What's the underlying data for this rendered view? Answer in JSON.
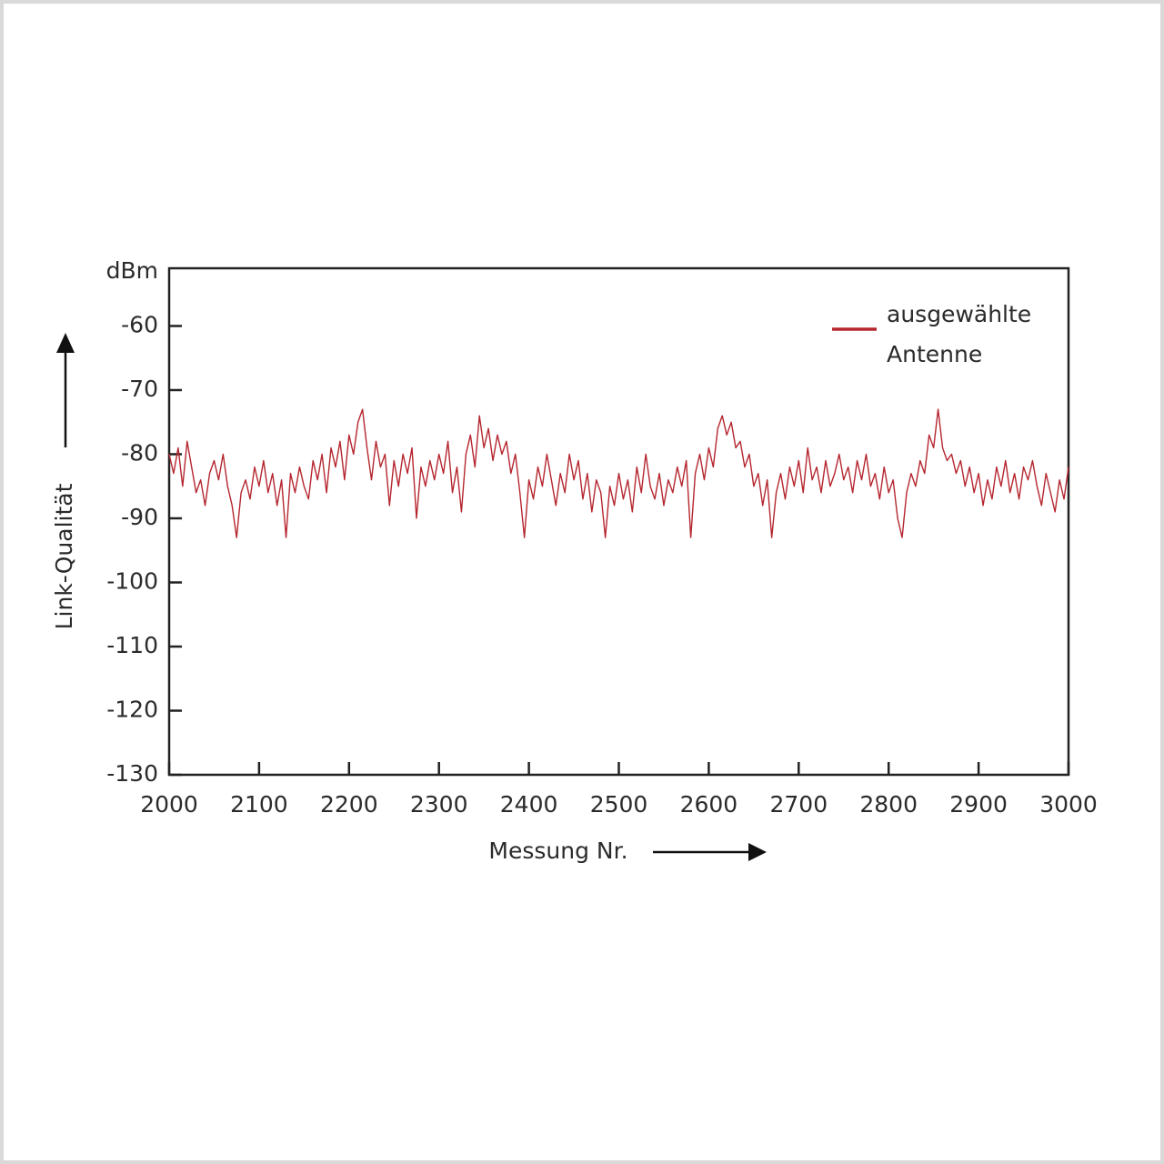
{
  "chart_data": {
    "type": "line",
    "x_label": "Messung Nr.",
    "y_label": "Link-Qualität",
    "y_unit": "dBm",
    "xlim": [
      2000,
      3000
    ],
    "ylim": [
      -130,
      -51
    ],
    "xticks": [
      2000,
      2100,
      2200,
      2300,
      2400,
      2500,
      2600,
      2700,
      2800,
      2900,
      3000
    ],
    "yticks": [
      -60,
      -70,
      -80,
      -90,
      -100,
      -110,
      -120,
      -130
    ],
    "x": [
      2000,
      2005,
      2010,
      2015,
      2020,
      2025,
      2030,
      2035,
      2040,
      2045,
      2050,
      2055,
      2060,
      2065,
      2070,
      2075,
      2080,
      2085,
      2090,
      2095,
      2100,
      2105,
      2110,
      2115,
      2120,
      2125,
      2130,
      2135,
      2140,
      2145,
      2150,
      2155,
      2160,
      2165,
      2170,
      2175,
      2180,
      2185,
      2190,
      2195,
      2200,
      2205,
      2210,
      2215,
      2220,
      2225,
      2230,
      2235,
      2240,
      2245,
      2250,
      2255,
      2260,
      2265,
      2270,
      2275,
      2280,
      2285,
      2290,
      2295,
      2300,
      2305,
      2310,
      2315,
      2320,
      2325,
      2330,
      2335,
      2340,
      2345,
      2350,
      2355,
      2360,
      2365,
      2370,
      2375,
      2380,
      2385,
      2390,
      2395,
      2400,
      2405,
      2410,
      2415,
      2420,
      2425,
      2430,
      2435,
      2440,
      2445,
      2450,
      2455,
      2460,
      2465,
      2470,
      2475,
      2480,
      2485,
      2490,
      2495,
      2500,
      2505,
      2510,
      2515,
      2520,
      2525,
      2530,
      2535,
      2540,
      2545,
      2550,
      2555,
      2560,
      2565,
      2570,
      2575,
      2580,
      2585,
      2590,
      2595,
      2600,
      2605,
      2610,
      2615,
      2620,
      2625,
      2630,
      2635,
      2640,
      2645,
      2650,
      2655,
      2660,
      2665,
      2670,
      2675,
      2680,
      2685,
      2690,
      2695,
      2700,
      2705,
      2710,
      2715,
      2720,
      2725,
      2730,
      2735,
      2740,
      2745,
      2750,
      2755,
      2760,
      2765,
      2770,
      2775,
      2780,
      2785,
      2790,
      2795,
      2800,
      2805,
      2810,
      2815,
      2820,
      2825,
      2830,
      2835,
      2840,
      2845,
      2850,
      2855,
      2860,
      2865,
      2870,
      2875,
      2880,
      2885,
      2890,
      2895,
      2900,
      2905,
      2910,
      2915,
      2920,
      2925,
      2930,
      2935,
      2940,
      2945,
      2950,
      2955,
      2960,
      2965,
      2970,
      2975,
      2980,
      2985,
      2990,
      2995,
      3000
    ],
    "series": [
      {
        "name": "ausgewählte Antenne",
        "color": "#b5262f",
        "values": [
          -80,
          -83,
          -79,
          -85,
          -78,
          -82,
          -86,
          -84,
          -88,
          -83,
          -81,
          -84,
          -80,
          -85,
          -88,
          -93,
          -86,
          -84,
          -87,
          -82,
          -85,
          -81,
          -86,
          -83,
          -88,
          -84,
          -93,
          -83,
          -86,
          -82,
          -85,
          -87,
          -81,
          -84,
          -80,
          -86,
          -79,
          -82,
          -78,
          -84,
          -77,
          -80,
          -75,
          -73,
          -79,
          -84,
          -78,
          -82,
          -80,
          -88,
          -81,
          -85,
          -80,
          -83,
          -79,
          -90,
          -82,
          -85,
          -81,
          -84,
          -80,
          -83,
          -78,
          -86,
          -82,
          -89,
          -80,
          -77,
          -82,
          -74,
          -79,
          -76,
          -81,
          -77,
          -80,
          -78,
          -83,
          -80,
          -86,
          -93,
          -84,
          -87,
          -82,
          -85,
          -80,
          -84,
          -88,
          -83,
          -86,
          -80,
          -84,
          -81,
          -87,
          -83,
          -89,
          -84,
          -86,
          -93,
          -85,
          -88,
          -83,
          -87,
          -84,
          -89,
          -82,
          -86,
          -80,
          -85,
          -87,
          -83,
          -88,
          -84,
          -86,
          -82,
          -85,
          -81,
          -93,
          -83,
          -80,
          -84,
          -79,
          -82,
          -76,
          -74,
          -77,
          -75,
          -79,
          -78,
          -82,
          -80,
          -85,
          -83,
          -88,
          -84,
          -93,
          -86,
          -83,
          -87,
          -82,
          -85,
          -81,
          -86,
          -79,
          -84,
          -82,
          -86,
          -81,
          -85,
          -83,
          -80,
          -84,
          -82,
          -86,
          -81,
          -84,
          -80,
          -85,
          -83,
          -87,
          -82,
          -86,
          -84,
          -90,
          -93,
          -86,
          -83,
          -85,
          -81,
          -83,
          -77,
          -79,
          -73,
          -79,
          -81,
          -80,
          -83,
          -81,
          -85,
          -82,
          -86,
          -83,
          -88,
          -84,
          -87,
          -82,
          -85,
          -81,
          -86,
          -83,
          -87,
          -82,
          -84,
          -81,
          -85,
          -88,
          -83,
          -86,
          -89,
          -84,
          -87,
          -82
        ]
      }
    ]
  }
}
